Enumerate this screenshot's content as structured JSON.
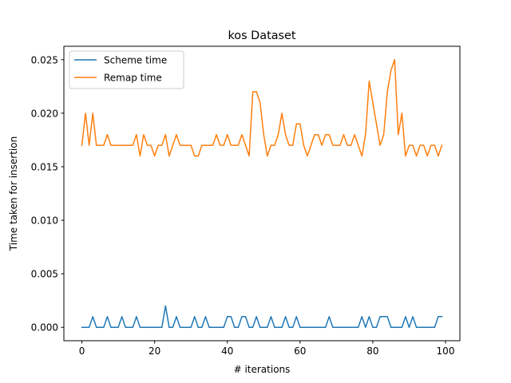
{
  "chart_data": {
    "type": "line",
    "title": "kos Dataset",
    "xlabel": "# iterations",
    "ylabel": "Time taken for insertion",
    "xlim": [
      -4.95,
      103.95
    ],
    "ylim": [
      -0.00125,
      0.02625
    ],
    "xticks": [
      0,
      20,
      40,
      60,
      80,
      100
    ],
    "xtick_labels": [
      "0",
      "20",
      "40",
      "60",
      "80",
      "100"
    ],
    "yticks": [
      0.0,
      0.005,
      0.01,
      0.015,
      0.02,
      0.025
    ],
    "ytick_labels": [
      "0.000",
      "0.005",
      "0.010",
      "0.015",
      "0.020",
      "0.025"
    ],
    "grid": false,
    "legend_position": "upper left",
    "x": [
      0,
      1,
      2,
      3,
      4,
      5,
      6,
      7,
      8,
      9,
      10,
      11,
      12,
      13,
      14,
      15,
      16,
      17,
      18,
      19,
      20,
      21,
      22,
      23,
      24,
      25,
      26,
      27,
      28,
      29,
      30,
      31,
      32,
      33,
      34,
      35,
      36,
      37,
      38,
      39,
      40,
      41,
      42,
      43,
      44,
      45,
      46,
      47,
      48,
      49,
      50,
      51,
      52,
      53,
      54,
      55,
      56,
      57,
      58,
      59,
      60,
      61,
      62,
      63,
      64,
      65,
      66,
      67,
      68,
      69,
      70,
      71,
      72,
      73,
      74,
      75,
      76,
      77,
      78,
      79,
      80,
      81,
      82,
      83,
      84,
      85,
      86,
      87,
      88,
      89,
      90,
      91,
      92,
      93,
      94,
      95,
      96,
      97,
      98,
      99
    ],
    "series": [
      {
        "name": "Scheme time",
        "color": "#1f77b4",
        "values": [
          0,
          0,
          0,
          0.001,
          0,
          0,
          0,
          0.001,
          0,
          0,
          0,
          0.001,
          0,
          0,
          0,
          0.001,
          0,
          0,
          0,
          0,
          0,
          0,
          0,
          0.002,
          0,
          0,
          0.001,
          0,
          0,
          0,
          0,
          0.001,
          0,
          0,
          0.001,
          0,
          0,
          0,
          0,
          0,
          0.001,
          0.001,
          0,
          0,
          0.001,
          0.001,
          0,
          0,
          0.001,
          0,
          0,
          0,
          0.001,
          0,
          0,
          0,
          0.001,
          0,
          0,
          0.001,
          0,
          0,
          0,
          0,
          0,
          0,
          0,
          0,
          0.001,
          0,
          0,
          0,
          0,
          0,
          0,
          0,
          0,
          0.001,
          0,
          0.001,
          0,
          0,
          0.001,
          0.001,
          0.001,
          0,
          0,
          0,
          0,
          0.001,
          0,
          0.001,
          0,
          0,
          0,
          0,
          0,
          0,
          0.001,
          0.001
        ]
      },
      {
        "name": "Remap time",
        "color": "#ff7f0e",
        "values": [
          0.017,
          0.02,
          0.017,
          0.02,
          0.017,
          0.017,
          0.017,
          0.018,
          0.017,
          0.017,
          0.017,
          0.017,
          0.017,
          0.017,
          0.017,
          0.018,
          0.016,
          0.018,
          0.017,
          0.017,
          0.016,
          0.017,
          0.017,
          0.018,
          0.016,
          0.017,
          0.018,
          0.017,
          0.017,
          0.017,
          0.017,
          0.016,
          0.016,
          0.017,
          0.017,
          0.017,
          0.017,
          0.018,
          0.017,
          0.017,
          0.018,
          0.017,
          0.017,
          0.017,
          0.018,
          0.017,
          0.016,
          0.022,
          0.022,
          0.021,
          0.018,
          0.016,
          0.017,
          0.017,
          0.018,
          0.02,
          0.018,
          0.017,
          0.017,
          0.019,
          0.019,
          0.017,
          0.016,
          0.017,
          0.018,
          0.018,
          0.017,
          0.018,
          0.018,
          0.017,
          0.017,
          0.017,
          0.018,
          0.017,
          0.017,
          0.018,
          0.017,
          0.016,
          0.018,
          0.023,
          0.021,
          0.019,
          0.017,
          0.018,
          0.022,
          0.024,
          0.025,
          0.018,
          0.02,
          0.016,
          0.017,
          0.017,
          0.016,
          0.017,
          0.017,
          0.016,
          0.017,
          0.017,
          0.016,
          0.017
        ]
      }
    ]
  }
}
